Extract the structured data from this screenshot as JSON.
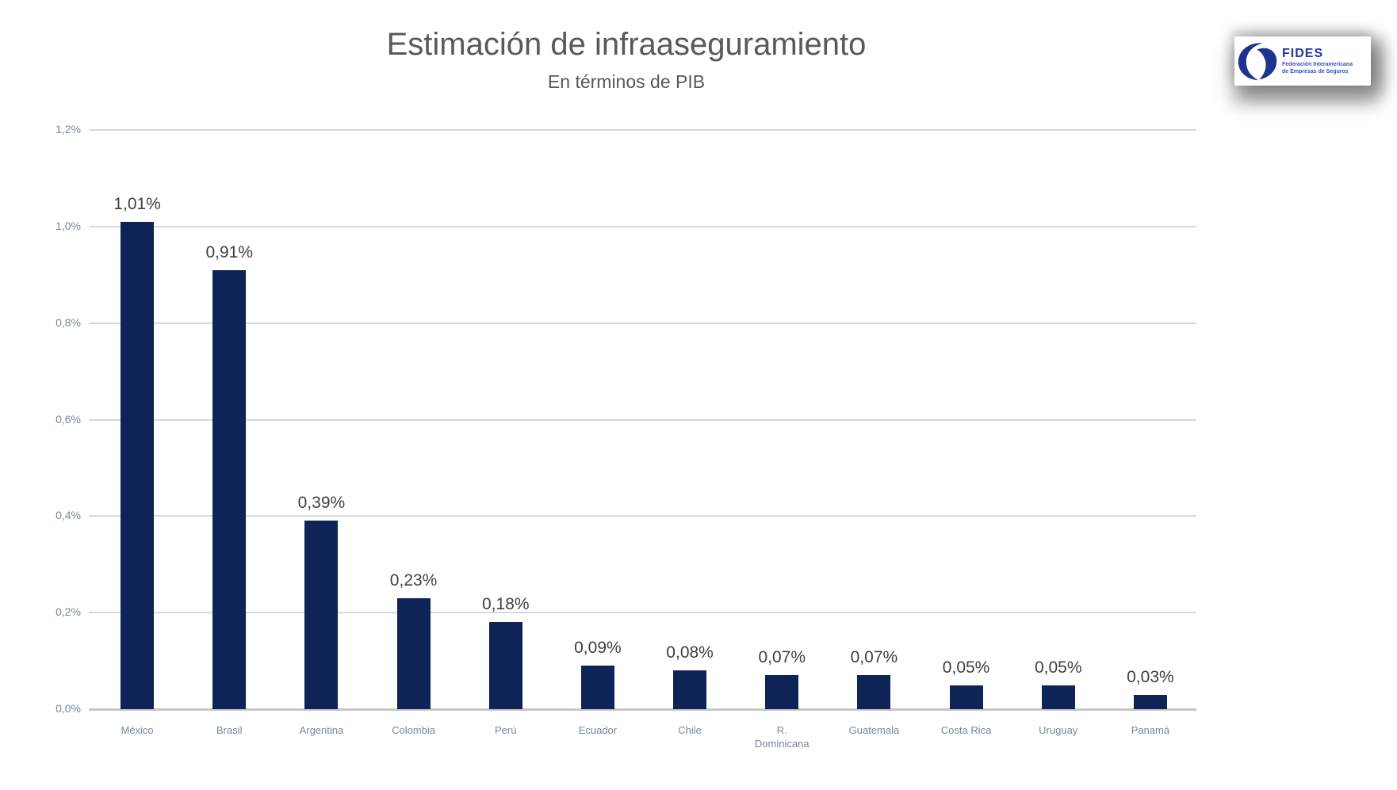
{
  "window": {
    "background": "#ffffff"
  },
  "header": {
    "title": "Estimación de infraaseguramiento",
    "subtitle": "En términos de PIB"
  },
  "logo": {
    "acronym": "FIDES",
    "subtitle_line1": "Federación Interamericana",
    "subtitle_line2": "de Empresas de Seguros",
    "mark_color": "#1d338f",
    "acronym_color": "#2238a0",
    "subtitle_color": "#3a54bc"
  },
  "chart_data": {
    "type": "bar",
    "title": "Estimación de infraaseguramiento",
    "subtitle": "En términos de PIB",
    "categories": [
      "México",
      "Brasil",
      "Argentina",
      "Colombia",
      "Perú",
      "Ecuador",
      "Chile",
      "R.\nDominicana",
      "Guatemala",
      "Costa Rica",
      "Uruguay",
      "Panamá"
    ],
    "values": [
      1.01,
      0.91,
      0.39,
      0.23,
      0.18,
      0.09,
      0.08,
      0.07,
      0.07,
      0.05,
      0.05,
      0.03
    ],
    "data_labels": [
      "1,01%",
      "0,91%",
      "0,39%",
      "0,23%",
      "0,18%",
      "0,09%",
      "0,08%",
      "0,07%",
      "0,07%",
      "0,05%",
      "0,05%",
      "0,03%"
    ],
    "y_ticks": [
      {
        "label": "1,2%",
        "value": 1.2
      },
      {
        "label": "1,0%",
        "value": 1.0
      },
      {
        "label": "0,8%",
        "value": 0.8
      },
      {
        "label": "0,6%",
        "value": 0.6
      },
      {
        "label": "0,4%",
        "value": 0.4
      },
      {
        "label": "0,2%",
        "value": 0.2
      },
      {
        "label": "0,0%",
        "value": 0.0
      }
    ],
    "ylim": [
      0,
      1.2
    ],
    "xlabel": "",
    "ylabel": "",
    "grid": true,
    "legend": false,
    "colors": {
      "bar": "#0e2456",
      "grid": "#d9d9d9",
      "axis_line": "#c6c6c6",
      "axis_text": "#76879f",
      "data_label_text": "#3f3f3f",
      "title_text": "#595959"
    }
  }
}
